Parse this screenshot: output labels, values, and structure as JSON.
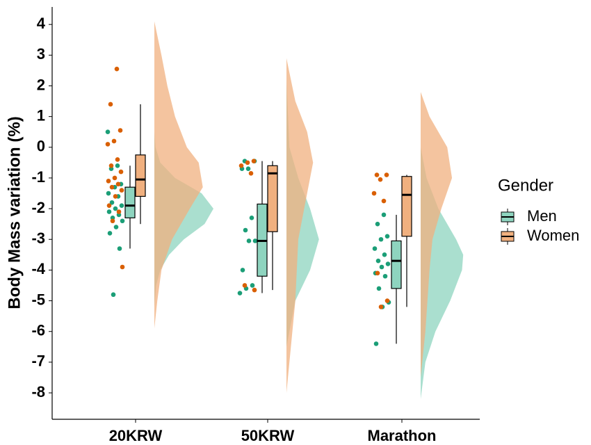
{
  "chart_data": {
    "type": "raincloud",
    "y_label": "Body Mass variation (%)",
    "categories": [
      "20KRW",
      "50KRW",
      "Marathon"
    ],
    "ylim": [
      -8.86,
      4.57
    ],
    "yticks": [
      -8,
      -7,
      -6,
      -5,
      -4,
      -3,
      -2,
      -1,
      0,
      1,
      2,
      3,
      4
    ],
    "legend_title": "Gender",
    "legend": "right",
    "series": [
      {
        "name": "Men",
        "color": "#1b9e77",
        "groups": [
          {
            "points": [
              0.5,
              -0.6,
              -0.7,
              -1.2,
              -1.3,
              -1.5,
              -1.6,
              -1.8,
              -1.9,
              -2.0,
              -2.1,
              -2.2,
              -2.3,
              -2.4,
              -2.6,
              -2.8,
              -3.3,
              -4.8
            ],
            "box": {
              "min": -3.3,
              "q1": -2.3,
              "median": -1.9,
              "q3": -1.3,
              "max": -0.6
            },
            "density": {
              "y": [
                -5.2,
                -4.5,
                -4,
                -3.5,
                -3,
                -2.5,
                -2,
                -1.5,
                -1,
                -0.5,
                0,
                0.5
              ],
              "width": [
                0,
                0.03,
                0.1,
                0.25,
                0.5,
                0.85,
                1.0,
                0.8,
                0.35,
                0.1,
                0.02,
                0
              ]
            }
          },
          {
            "points": [
              -0.45,
              -0.45,
              -0.7,
              -0.7,
              -2.3,
              -2.7,
              -3.05,
              -3.05,
              -4.0,
              -4.5,
              -4.6,
              -4.75
            ],
            "box": {
              "min": -4.75,
              "q1": -4.2,
              "median": -3.05,
              "q3": -1.85,
              "max": -0.45
            },
            "density": {
              "y": [
                -6.5,
                -5,
                -4,
                -3,
                -2,
                -1,
                0,
                2.2
              ],
              "width": [
                0,
                0.15,
                0.4,
                0.55,
                0.4,
                0.2,
                0.05,
                0
              ]
            }
          },
          {
            "points": [
              -2.2,
              -2.5,
              -2.9,
              -3.0,
              -3.3,
              -3.5,
              -3.7,
              -3.8,
              -3.9,
              -4.1,
              -4.2,
              -4.6,
              -5.05,
              -5.2,
              -6.4
            ],
            "box": {
              "min": -6.4,
              "q1": -4.6,
              "median": -3.7,
              "q3": -3.05,
              "max": -2.2
            },
            "density": {
              "y": [
                -8.2,
                -7,
                -6,
                -5,
                -4,
                -3.5,
                -3,
                -2,
                -1,
                0
              ],
              "width": [
                0,
                0.08,
                0.25,
                0.5,
                0.7,
                0.72,
                0.6,
                0.3,
                0.1,
                0
              ]
            }
          }
        ]
      },
      {
        "name": "Women",
        "color": "#d95f02",
        "groups": [
          {
            "points": [
              2.55,
              1.4,
              0.55,
              0.2,
              0.1,
              -0.4,
              -0.6,
              -0.8,
              -1.0,
              -1.1,
              -1.2,
              -1.3,
              -1.4,
              -1.6,
              -1.9,
              -2.1,
              -2.4,
              -3.9
            ],
            "box": {
              "min": -2.5,
              "q1": -1.6,
              "median": -1.05,
              "q3": -0.25,
              "max": 1.4
            },
            "density": {
              "y": [
                -5.9,
                -5,
                -4,
                -3,
                -2,
                -1.3,
                -0.5,
                0,
                1,
                2,
                3,
                4.1
              ],
              "width": [
                0,
                0.05,
                0.12,
                0.3,
                0.6,
                0.82,
                0.75,
                0.55,
                0.35,
                0.22,
                0.12,
                0
              ]
            }
          },
          {
            "points": [
              -0.45,
              -0.5,
              -0.6,
              -0.85,
              -4.5,
              -4.65
            ],
            "box": {
              "min": -4.65,
              "q1": -2.75,
              "median": -0.85,
              "q3": -0.6,
              "max": -0.45
            },
            "density": {
              "y": [
                -8,
                -7,
                -5,
                -3,
                -1.5,
                -0.5,
                0.5,
                1.5,
                2.9
              ],
              "width": [
                0,
                0.05,
                0.15,
                0.2,
                0.35,
                0.45,
                0.35,
                0.15,
                0
              ]
            }
          },
          {
            "points": [
              -0.9,
              -0.9,
              -1.05,
              -1.5,
              -1.75,
              -4.1,
              -5.0,
              -5.2
            ],
            "box": {
              "min": -5.2,
              "q1": -2.9,
              "median": -1.55,
              "q3": -0.95,
              "max": -0.9
            },
            "density": {
              "y": [
                -7.5,
                -6,
                -4,
                -3,
                -2,
                -1,
                0,
                1,
                1.8
              ],
              "width": [
                0,
                0.08,
                0.15,
                0.2,
                0.35,
                0.53,
                0.45,
                0.15,
                0
              ]
            }
          }
        ]
      }
    ]
  }
}
